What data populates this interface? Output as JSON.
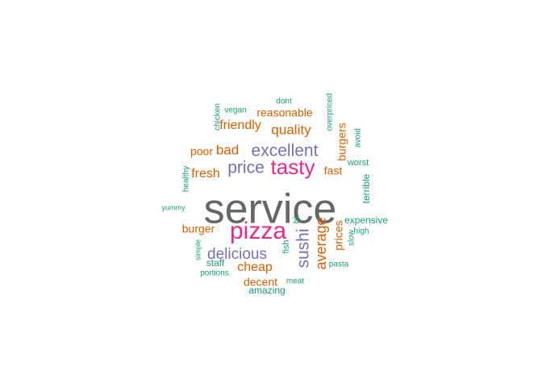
{
  "chart_data": {
    "type": "wordcloud",
    "colors": {
      "teal": "#1b9e77",
      "orange": "#d95f02",
      "purple": "#7570b3",
      "pink": "#e7298a",
      "gray": "#666666"
    },
    "words": [
      {
        "text": "service",
        "color": "#666666"
      },
      {
        "text": "pizza",
        "color": "#e7298a"
      },
      {
        "text": "tasty",
        "color": "#e7298a"
      },
      {
        "text": "excellent",
        "color": "#7570b3"
      },
      {
        "text": "price",
        "color": "#7570b3"
      },
      {
        "text": "delicious",
        "color": "#7570b3"
      },
      {
        "text": "sushi",
        "color": "#7570b3"
      },
      {
        "text": "average",
        "color": "#d95f02"
      },
      {
        "text": "quality",
        "color": "#d95f02"
      },
      {
        "text": "friendly",
        "color": "#d95f02"
      },
      {
        "text": "bad",
        "color": "#d95f02"
      },
      {
        "text": "fresh",
        "color": "#d95f02"
      },
      {
        "text": "cheap",
        "color": "#d95f02"
      },
      {
        "text": "burger",
        "color": "#d95f02"
      },
      {
        "text": "burgers",
        "color": "#d95f02"
      },
      {
        "text": "decent",
        "color": "#d95f02"
      },
      {
        "text": "reasonable",
        "color": "#d95f02"
      },
      {
        "text": "poor",
        "color": "#d95f02"
      },
      {
        "text": "fast",
        "color": "#d95f02"
      },
      {
        "text": "prices",
        "color": "#d95f02"
      },
      {
        "text": "staff",
        "color": "#1b9e77"
      },
      {
        "text": "expensive",
        "color": "#1b9e77"
      },
      {
        "text": "amazing",
        "color": "#1b9e77"
      },
      {
        "text": "terrible",
        "color": "#1b9e77"
      },
      {
        "text": "worst",
        "color": "#1b9e77"
      },
      {
        "text": "avoid",
        "color": "#1b9e77"
      },
      {
        "text": "overpriced",
        "color": "#1b9e77"
      },
      {
        "text": "dont",
        "color": "#1b9e77"
      },
      {
        "text": "vegan",
        "color": "#1b9e77"
      },
      {
        "text": "chicken",
        "color": "#1b9e77"
      },
      {
        "text": "healthy",
        "color": "#1b9e77"
      },
      {
        "text": "yummy",
        "color": "#1b9e77"
      },
      {
        "text": "simple",
        "color": "#1b9e77"
      },
      {
        "text": "portions",
        "color": "#1b9e77"
      },
      {
        "text": "meat",
        "color": "#1b9e77"
      },
      {
        "text": "pasta",
        "color": "#1b9e77"
      },
      {
        "text": "slow",
        "color": "#1b9e77"
      },
      {
        "text": "high",
        "color": "#1b9e77"
      },
      {
        "text": "fish",
        "color": "#1b9e77"
      },
      {
        "text": "bit",
        "color": "#1b9e77"
      }
    ]
  }
}
